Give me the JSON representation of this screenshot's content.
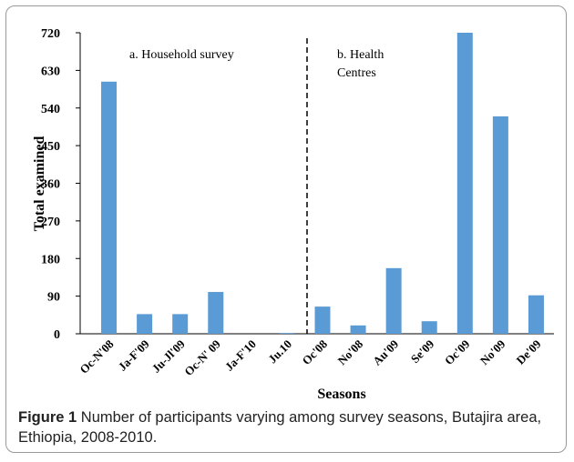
{
  "chart_data": {
    "type": "bar",
    "annotations": [
      "a. Household survey",
      "b. Health",
      "Centres"
    ],
    "x_label": "Seasons",
    "y_label": "Total examined",
    "categories": [
      "Oc-N'08",
      "Ja-F'09",
      "Ju-Jl'09",
      "Oc-N' 09",
      "Ja-F'10",
      "Ju.10",
      "Oc'08",
      "No'08",
      "Au'09",
      "Se'09",
      "Oc'09",
      "No'09",
      "De'09"
    ],
    "values": [
      603,
      47,
      47,
      100,
      0,
      2,
      65,
      20,
      157,
      30,
      720,
      520,
      92
    ],
    "color": "#5b9bd5",
    "ylim": [
      0,
      720
    ],
    "yticks": [
      0,
      90,
      180,
      270,
      360,
      450,
      540,
      630,
      720
    ]
  },
  "caption": {
    "label": "Figure 1",
    "text": "Number of participants varying among survey seasons, Butajira area, Ethiopia, 2008-2010."
  }
}
